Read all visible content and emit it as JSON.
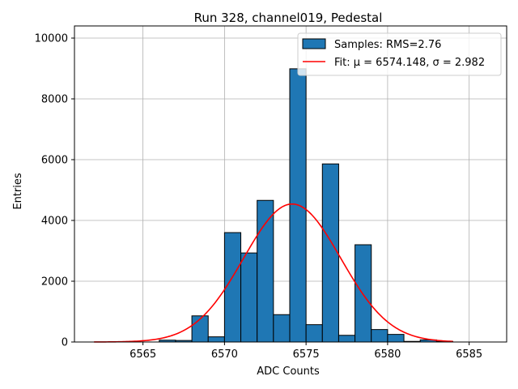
{
  "chart_data": {
    "type": "bar",
    "title": "Run 328, channel019, Pedestal",
    "xlabel": "ADC Counts",
    "ylabel": "Entries",
    "xlim": [
      6560.8,
      6587.3
    ],
    "ylim": [
      0,
      10400
    ],
    "xticks": [
      6565,
      6570,
      6575,
      6580,
      6585
    ],
    "yticks": [
      0,
      2000,
      4000,
      6000,
      8000,
      10000
    ],
    "grid": true,
    "legend_position": "top-right",
    "bin_width": 1,
    "bins": [
      {
        "x": 6566,
        "count": 60
      },
      {
        "x": 6567,
        "count": 50
      },
      {
        "x": 6568,
        "count": 860
      },
      {
        "x": 6569,
        "count": 170
      },
      {
        "x": 6570,
        "count": 3600
      },
      {
        "x": 6571,
        "count": 2930
      },
      {
        "x": 6572,
        "count": 4660
      },
      {
        "x": 6573,
        "count": 900
      },
      {
        "x": 6574,
        "count": 8990
      },
      {
        "x": 6575,
        "count": 570
      },
      {
        "x": 6576,
        "count": 5860
      },
      {
        "x": 6577,
        "count": 220
      },
      {
        "x": 6578,
        "count": 3200
      },
      {
        "x": 6579,
        "count": 410
      },
      {
        "x": 6580,
        "count": 250
      },
      {
        "x": 6581,
        "count": 20
      },
      {
        "x": 6582,
        "count": 70
      },
      {
        "x": 6583,
        "count": 20
      }
    ],
    "fit": {
      "mu": 6574.148,
      "sigma": 2.982,
      "amplitude": 4540,
      "x_range": [
        6562,
        6584
      ]
    },
    "legend": [
      {
        "label": "Samples: RMS=2.76",
        "kind": "bar"
      },
      {
        "label": "Fit: μ = 6574.148, σ = 2.982",
        "kind": "line"
      }
    ],
    "colors": {
      "bar_fill": "#1f77b4",
      "bar_edge": "#000000",
      "fit_line": "#ff0000",
      "grid": "#b0b0b0"
    }
  }
}
